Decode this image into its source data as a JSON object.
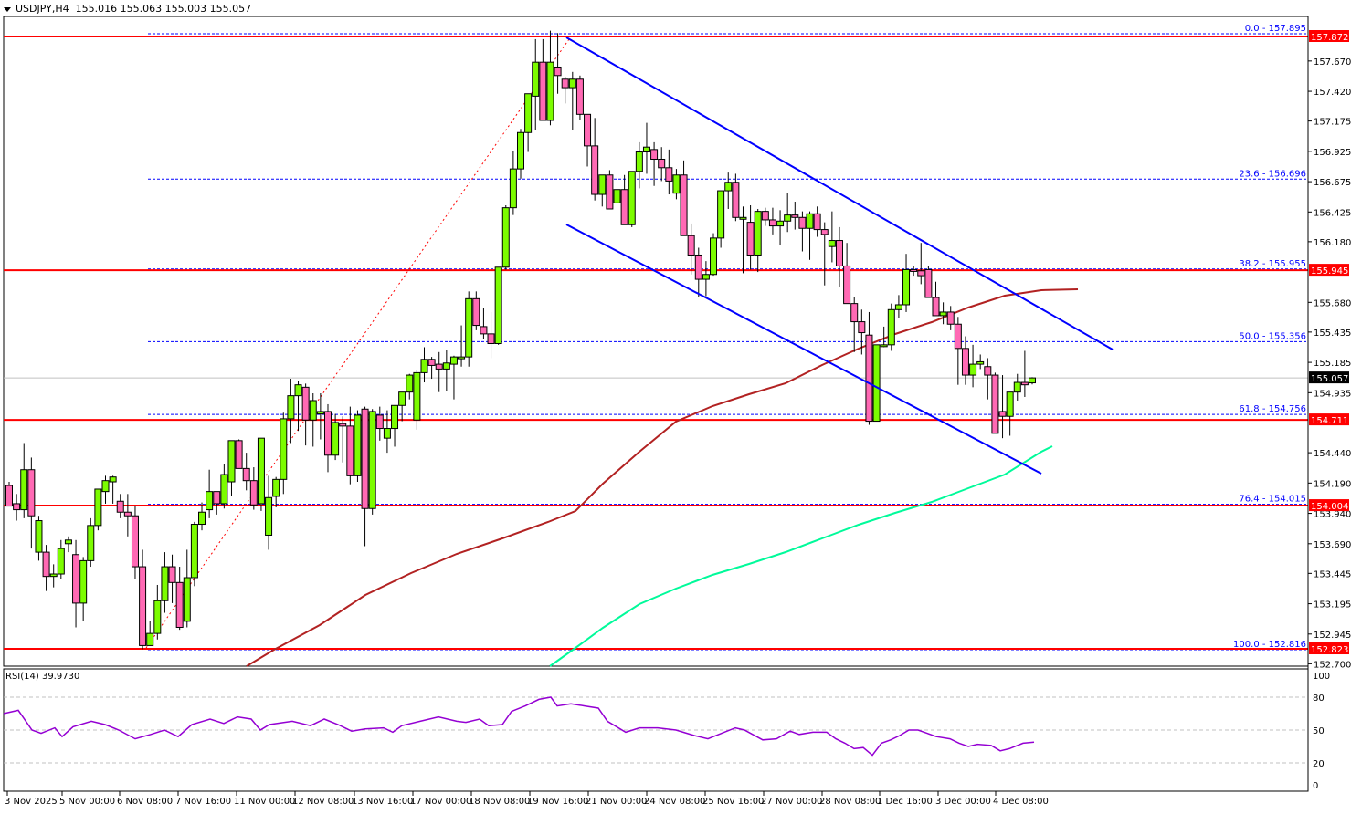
{
  "header": {
    "symbol": "USDJPY,H4",
    "ohlc": "155.016 155.063 155.003 155.057"
  },
  "rsi_header": {
    "label": "RSI(14) 39.9730"
  },
  "colors": {
    "bull": "#7CFC00",
    "bear": "#FF69B4",
    "outline": "#000000",
    "support_line": "#FF0000",
    "fib_line": "#0000FF",
    "channel": "#0000FF",
    "ma_slow": "#B22222",
    "ma_long": "#00FA9A",
    "rsi": "#9400D3",
    "bid_line": "#C0C0C0",
    "fib_trend": "#FF0000"
  },
  "chart_data": [
    {
      "type": "candlestick",
      "title": "USDJPY,H4",
      "ylim": [
        152.7,
        157.92
      ],
      "y_ticks": [
        157.67,
        157.42,
        157.175,
        156.925,
        156.675,
        156.425,
        156.18,
        155.68,
        155.435,
        155.185,
        154.935,
        154.44,
        154.19,
        153.94,
        153.69,
        153.445,
        153.195,
        152.945,
        152.7
      ],
      "x_tick_labels": [
        "3 Nov 2025",
        "5 Nov 00:00",
        "6 Nov 08:00",
        "7 Nov 16:00",
        "11 Nov 00:00",
        "12 Nov 08:00",
        "13 Nov 16:00",
        "17 Nov 00:00",
        "18 Nov 08:00",
        "19 Nov 16:00",
        "21 Nov 00:00",
        "24 Nov 08:00",
        "25 Nov 16:00",
        "27 Nov 00:00",
        "28 Nov 08:00",
        "1 Dec 16:00",
        "3 Dec 00:00",
        "4 Dec 08:00"
      ],
      "current_price": 155.057,
      "horizontal_levels": [
        {
          "label": "157.872",
          "price": 157.872
        },
        {
          "label": "155.945",
          "price": 155.945
        },
        {
          "label": "154.711",
          "price": 154.711
        },
        {
          "label": "154.004",
          "price": 154.004
        },
        {
          "label": "152.823",
          "price": 152.823
        }
      ],
      "fibonacci": [
        {
          "label": "0.0 - 157.895",
          "level": 0.0,
          "price": 157.895
        },
        {
          "label": "23.6 - 156.696",
          "level": 23.6,
          "price": 156.696
        },
        {
          "label": "38.2 - 155.955",
          "level": 38.2,
          "price": 155.955
        },
        {
          "label": "50.0 - 155.356",
          "level": 50.0,
          "price": 155.356
        },
        {
          "label": "61.8 - 154.756",
          "level": 61.8,
          "price": 154.756
        },
        {
          "label": "76.4 - 154.015",
          "level": 76.4,
          "price": 154.015
        },
        {
          "label": "100.0 - 152.816",
          "level": 100.0,
          "price": 152.816
        }
      ],
      "candles": [
        [
          154.17,
          154.2,
          154.1,
          154.0
        ],
        [
          154.02,
          154.1,
          153.88,
          153.97
        ],
        [
          153.97,
          154.52,
          153.9,
          154.3
        ],
        [
          154.3,
          154.4,
          153.65,
          153.92
        ],
        [
          153.62,
          153.92,
          153.55,
          153.88
        ],
        [
          153.62,
          153.68,
          153.3,
          153.42
        ],
        [
          153.42,
          153.52,
          153.33,
          153.44
        ],
        [
          153.44,
          153.72,
          153.4,
          153.65
        ],
        [
          153.69,
          153.75,
          153.62,
          153.72
        ],
        [
          153.6,
          153.72,
          153.0,
          153.2
        ],
        [
          153.2,
          153.58,
          153.05,
          153.55
        ],
        [
          153.55,
          153.9,
          153.5,
          153.84
        ],
        [
          153.84,
          154.14,
          153.8,
          154.14
        ],
        [
          154.12,
          154.25,
          154.02,
          154.21
        ],
        [
          154.2,
          154.25,
          154.02,
          154.24
        ],
        [
          154.04,
          154.1,
          153.9,
          153.95
        ],
        [
          153.95,
          154.1,
          153.75,
          153.92
        ],
        [
          153.92,
          154.0,
          153.4,
          153.5
        ],
        [
          153.5,
          153.64,
          152.82,
          152.85
        ],
        [
          152.85,
          153.05,
          152.95,
          152.95
        ],
        [
          152.95,
          153.35,
          152.9,
          153.22
        ],
        [
          153.22,
          153.62,
          153.12,
          153.5
        ],
        [
          153.5,
          153.6,
          153.2,
          153.37
        ],
        [
          153.37,
          153.5,
          152.98,
          153.0
        ],
        [
          153.05,
          153.64,
          153.0,
          153.41
        ],
        [
          153.41,
          153.87,
          153.34,
          153.85
        ],
        [
          153.85,
          154.03,
          153.8,
          153.95
        ],
        [
          153.97,
          154.3,
          153.9,
          154.12
        ],
        [
          154.12,
          154.12,
          153.93,
          154.02
        ],
        [
          154.02,
          154.35,
          153.98,
          154.26
        ],
        [
          154.2,
          154.5,
          154.08,
          154.54
        ],
        [
          154.54,
          154.55,
          154.38,
          154.31
        ],
        [
          154.31,
          154.44,
          154.13,
          154.21
        ],
        [
          154.21,
          154.32,
          153.97,
          154.01
        ],
        [
          154.02,
          154.56,
          153.96,
          154.56
        ],
        [
          153.76,
          154.25,
          153.64,
          154.07
        ],
        [
          154.08,
          154.24,
          153.99,
          154.22
        ],
        [
          154.22,
          154.77,
          154.1,
          154.72
        ],
        [
          154.72,
          155.05,
          154.52,
          154.91
        ],
        [
          154.91,
          155.03,
          154.62,
          155.0
        ],
        [
          154.98,
          155.01,
          154.5,
          154.71
        ],
        [
          154.71,
          154.93,
          154.49,
          154.87
        ],
        [
          154.76,
          154.93,
          154.55,
          154.78
        ],
        [
          154.78,
          154.84,
          154.28,
          154.42
        ],
        [
          154.42,
          154.76,
          154.38,
          154.69
        ],
        [
          154.68,
          154.74,
          154.36,
          154.66
        ],
        [
          154.66,
          154.82,
          154.18,
          154.25
        ],
        [
          154.25,
          154.79,
          154.2,
          154.75
        ],
        [
          154.8,
          154.82,
          153.67,
          153.98
        ],
        [
          153.98,
          154.8,
          153.93,
          154.78
        ],
        [
          154.75,
          154.82,
          154.54,
          154.64
        ],
        [
          154.56,
          154.79,
          154.44,
          154.64
        ],
        [
          154.64,
          154.83,
          154.49,
          154.83
        ],
        [
          154.83,
          154.93,
          154.7,
          154.94
        ],
        [
          154.94,
          155.09,
          154.88,
          155.08
        ],
        [
          154.71,
          155.12,
          154.63,
          155.1
        ],
        [
          155.1,
          155.31,
          155.02,
          155.21
        ],
        [
          155.21,
          155.23,
          155.05,
          155.16
        ],
        [
          155.17,
          155.27,
          154.94,
          155.13
        ],
        [
          155.13,
          155.29,
          154.95,
          155.18
        ],
        [
          155.17,
          155.24,
          154.88,
          155.23
        ],
        [
          155.23,
          155.49,
          155.15,
          155.23
        ],
        [
          155.23,
          155.77,
          155.15,
          155.71
        ],
        [
          155.71,
          155.77,
          155.45,
          155.49
        ],
        [
          155.48,
          155.63,
          155.38,
          155.42
        ],
        [
          155.42,
          155.6,
          155.22,
          155.34
        ],
        [
          155.34,
          155.97,
          155.33,
          155.97
        ],
        [
          155.97,
          156.48,
          155.95,
          156.46
        ],
        [
          156.46,
          156.93,
          156.4,
          156.78
        ],
        [
          156.78,
          157.11,
          156.7,
          157.08
        ],
        [
          157.08,
          157.32,
          156.92,
          157.4
        ],
        [
          157.38,
          157.85,
          157.1,
          157.66
        ],
        [
          157.66,
          157.85,
          157.3,
          157.18
        ],
        [
          157.18,
          157.92,
          157.14,
          157.66
        ],
        [
          157.62,
          157.9,
          157.4,
          157.55
        ],
        [
          157.52,
          157.54,
          157.32,
          157.45
        ],
        [
          157.45,
          157.58,
          157.1,
          157.52
        ],
        [
          157.52,
          157.55,
          157.18,
          157.23
        ],
        [
          157.23,
          157.23,
          156.8,
          156.97
        ],
        [
          156.97,
          157.2,
          156.52,
          156.57
        ],
        [
          156.57,
          156.73,
          156.47,
          156.73
        ],
        [
          156.73,
          156.77,
          156.47,
          156.45
        ],
        [
          156.5,
          156.8,
          156.27,
          156.61
        ],
        [
          156.61,
          156.73,
          156.42,
          156.32
        ],
        [
          156.32,
          156.7,
          156.3,
          156.76
        ],
        [
          156.76,
          157.0,
          156.62,
          156.92
        ],
        [
          156.92,
          157.16,
          156.74,
          156.96
        ],
        [
          156.94,
          157.0,
          156.64,
          156.86
        ],
        [
          156.86,
          156.96,
          156.68,
          156.79
        ],
        [
          156.79,
          156.94,
          156.57,
          156.68
        ],
        [
          156.58,
          156.78,
          156.53,
          156.73
        ],
        [
          156.73,
          156.85,
          156.4,
          156.23
        ],
        [
          156.23,
          156.33,
          155.91,
          156.07
        ],
        [
          156.07,
          156.13,
          155.72,
          155.87
        ],
        [
          155.87,
          156.02,
          155.73,
          155.91
        ],
        [
          155.91,
          156.25,
          155.9,
          156.21
        ],
        [
          156.21,
          156.45,
          156.13,
          156.6
        ],
        [
          156.6,
          156.75,
          156.45,
          156.67
        ],
        [
          156.67,
          156.74,
          156.35,
          156.38
        ],
        [
          156.38,
          156.47,
          155.92,
          156.38
        ],
        [
          156.34,
          156.48,
          155.95,
          156.07
        ],
        [
          156.07,
          156.45,
          155.93,
          156.43
        ],
        [
          156.43,
          156.46,
          156.31,
          156.36
        ],
        [
          156.36,
          156.46,
          156.24,
          156.31
        ],
        [
          156.31,
          156.44,
          156.15,
          156.35
        ],
        [
          156.35,
          156.58,
          156.26,
          156.4
        ],
        [
          156.4,
          156.51,
          156.28,
          156.38
        ],
        [
          156.38,
          156.43,
          156.1,
          156.29
        ],
        [
          156.29,
          156.43,
          156.03,
          156.41
        ],
        [
          156.41,
          156.47,
          156.22,
          156.28
        ],
        [
          156.28,
          156.34,
          155.82,
          156.24
        ],
        [
          156.14,
          156.43,
          156.01,
          156.19
        ],
        [
          156.19,
          156.3,
          155.81,
          155.98
        ],
        [
          155.98,
          156.17,
          155.87,
          155.67
        ],
        [
          155.67,
          155.72,
          155.27,
          155.52
        ],
        [
          155.52,
          155.62,
          155.25,
          155.43
        ],
        [
          155.41,
          155.6,
          154.67,
          154.7
        ],
        [
          154.7,
          155.33,
          154.72,
          155.33
        ],
        [
          155.33,
          155.48,
          155.31,
          155.33
        ],
        [
          155.33,
          155.67,
          155.28,
          155.62
        ],
        [
          155.62,
          155.74,
          155.55,
          155.66
        ],
        [
          155.66,
          156.08,
          155.6,
          155.95
        ],
        [
          155.95,
          155.98,
          155.9,
          155.94
        ],
        [
          155.94,
          156.17,
          155.83,
          155.9
        ],
        [
          155.95,
          155.98,
          155.75,
          155.72
        ],
        [
          155.72,
          155.85,
          155.6,
          155.57
        ],
        [
          155.57,
          155.68,
          155.5,
          155.6
        ],
        [
          155.6,
          155.65,
          155.45,
          155.5
        ],
        [
          155.5,
          155.56,
          155.0,
          155.3
        ],
        [
          155.3,
          155.4,
          155.0,
          155.08
        ],
        [
          155.08,
          155.33,
          154.98,
          155.17
        ],
        [
          155.17,
          155.25,
          155.13,
          155.19
        ],
        [
          155.15,
          155.22,
          154.88,
          155.08
        ],
        [
          155.08,
          155.1,
          154.62,
          154.6
        ],
        [
          154.78,
          155.08,
          154.56,
          154.74
        ],
        [
          154.74,
          154.86,
          154.58,
          154.94
        ],
        [
          154.94,
          155.09,
          154.87,
          155.02
        ],
        [
          155.02,
          155.28,
          154.9,
          155.0
        ],
        [
          155.016,
          155.063,
          155.003,
          155.057
        ]
      ],
      "indicators": [
        {
          "name": "MA (slow, dark red)",
          "color": "#B22222"
        },
        {
          "name": "MA (long, spring green)",
          "color": "#00FA9A"
        }
      ],
      "trendlines": [
        {
          "name": "channel-upper",
          "from": [
            620,
            41
          ],
          "to": [
            1218,
            383
          ]
        },
        {
          "name": "channel-lower",
          "from": [
            620,
            246
          ],
          "to": [
            1140,
            519
          ]
        },
        {
          "name": "fib-trend",
          "from": [
            160,
            710
          ],
          "to": [
            625,
            40
          ]
        }
      ]
    },
    {
      "type": "line",
      "title": "RSI(14) 39.9730",
      "ylim": [
        0,
        100
      ],
      "y_ticks": [
        100,
        80,
        50,
        20,
        0
      ],
      "levels": [
        80,
        50,
        20
      ],
      "last_value": 39.973
    }
  ],
  "axis": {
    "price_ticks": [
      "157.670",
      "157.420",
      "157.175",
      "156.925",
      "156.675",
      "156.425",
      "156.180",
      "155.680",
      "155.435",
      "155.185",
      "154.935",
      "154.440",
      "154.190",
      "153.940",
      "153.690",
      "153.445",
      "153.195",
      "152.945",
      "152.700"
    ],
    "rsi_ticks": [
      "100",
      "80",
      "50",
      "20",
      "0"
    ]
  }
}
